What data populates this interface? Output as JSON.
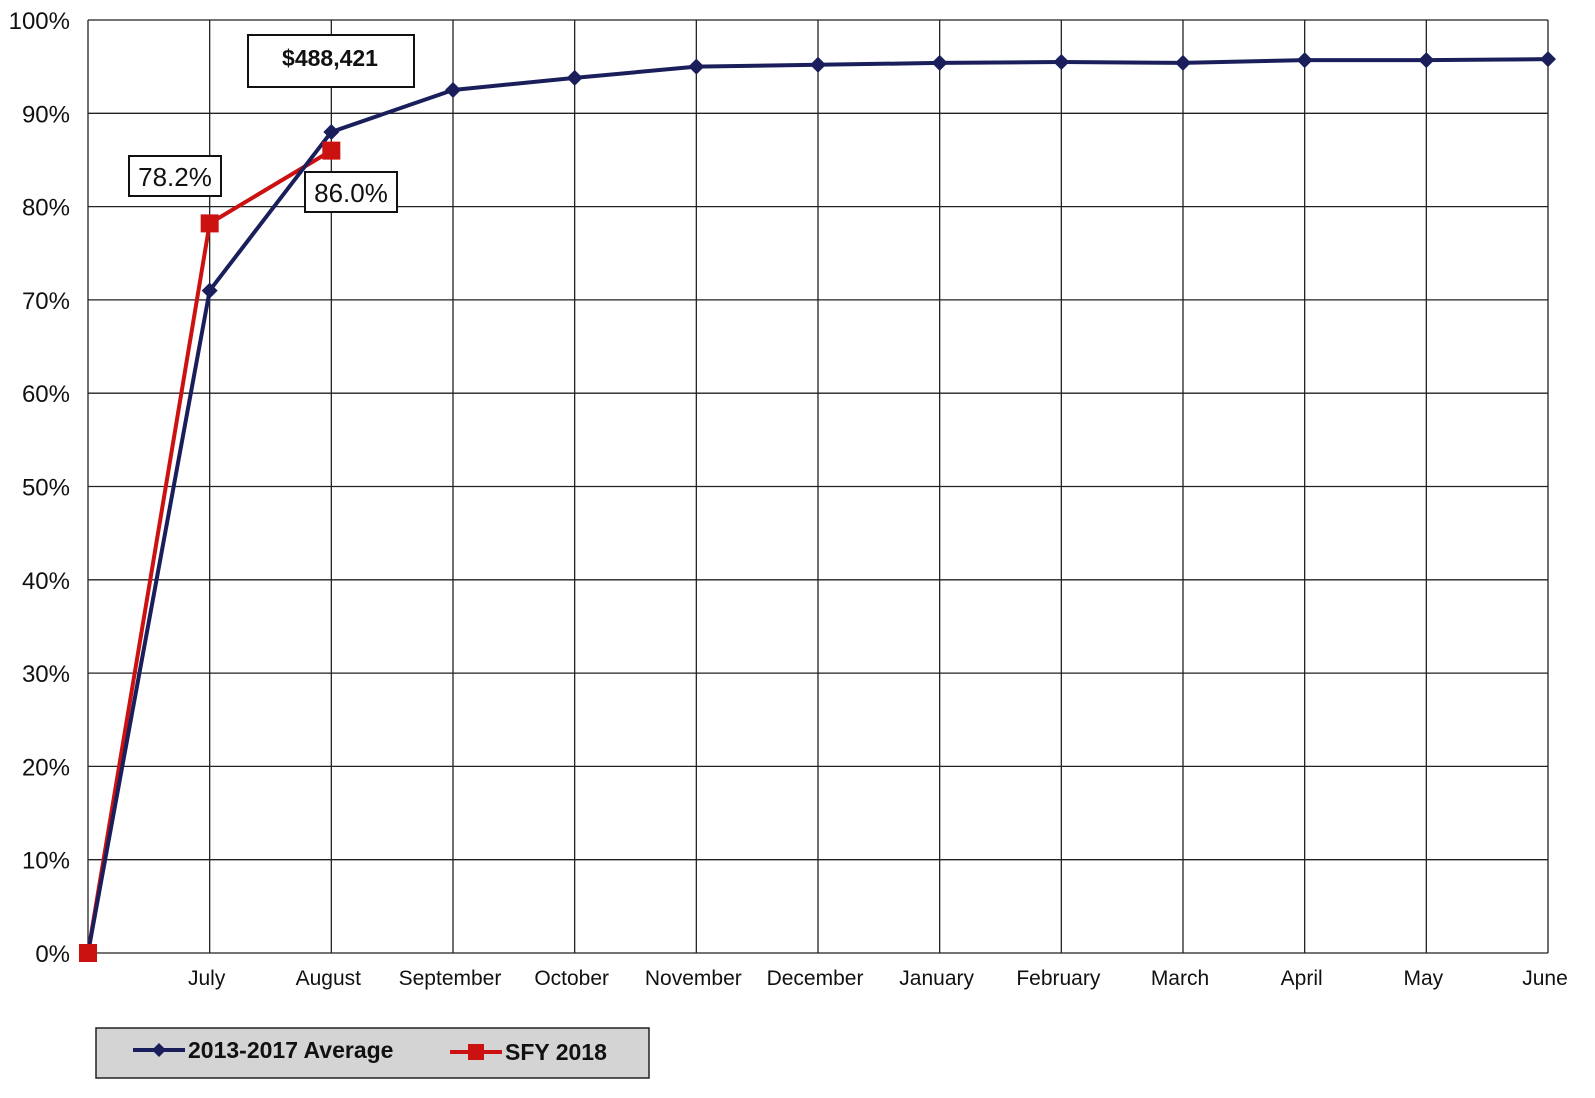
{
  "colors": {
    "series_average": "#1a1f5c",
    "series_sfy": "#cc1111",
    "grid": "#222222",
    "legend_bg": "#d4d4d4"
  },
  "chart_data": {
    "type": "line",
    "title": "",
    "xlabel": "",
    "ylabel": "",
    "categories": [
      "",
      "July",
      "August",
      "September",
      "October",
      "November",
      "December",
      "January",
      "February",
      "March",
      "April",
      "May",
      "June"
    ],
    "ylim": [
      0,
      100
    ],
    "yticks": [
      0,
      10,
      20,
      30,
      40,
      50,
      60,
      70,
      80,
      90,
      100
    ],
    "ytick_labels": [
      "0%",
      "10%",
      "20%",
      "30%",
      "40%",
      "50%",
      "60%",
      "70%",
      "80%",
      "90%",
      "100%"
    ],
    "grid": true,
    "legend_position": "bottom-left",
    "series": [
      {
        "name": "2013-2017 Average",
        "marker": "diamond",
        "color": "#1a1f5c",
        "values": [
          0,
          71.0,
          88.0,
          92.5,
          93.8,
          95.0,
          95.2,
          95.4,
          95.5,
          95.4,
          95.7,
          95.7,
          95.8
        ]
      },
      {
        "name": "SFY 2018",
        "marker": "square",
        "color": "#cc1111",
        "values": [
          0,
          78.2,
          86.0,
          null,
          null,
          null,
          null,
          null,
          null,
          null,
          null,
          null,
          null
        ]
      }
    ],
    "annotations": [
      {
        "text": "$488,421",
        "bold": true,
        "anchor_category": "August"
      },
      {
        "text": "78.2%",
        "bold": false,
        "anchor_category": "July"
      },
      {
        "text": "86.0%",
        "bold": false,
        "anchor_category": "August"
      }
    ]
  }
}
